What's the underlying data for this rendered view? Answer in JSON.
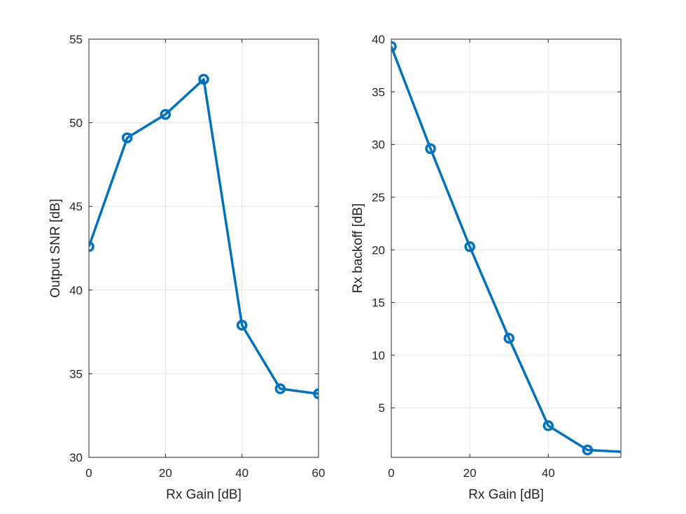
{
  "chart_data": [
    {
      "type": "line",
      "title": "",
      "xlabel": "Rx Gain [dB]",
      "ylabel": "Output SNR [dB]",
      "xlim": [
        0,
        60
      ],
      "ylim": [
        30,
        55
      ],
      "xticks": [
        0,
        20,
        40,
        60
      ],
      "yticks": [
        30,
        35,
        40,
        45,
        50,
        55
      ],
      "grid": true,
      "marker": "circle",
      "line_color": "#0072BD",
      "series": [
        {
          "x": [
            0,
            10,
            20,
            30,
            40,
            50,
            60
          ],
          "y": [
            42.6,
            49.1,
            50.5,
            52.6,
            37.9,
            34.1,
            33.8
          ]
        }
      ]
    },
    {
      "type": "line",
      "title": "",
      "xlabel": "Rx Gain [dB]",
      "ylabel": "Rx backoff [dB]",
      "xlim": [
        0,
        58.5
      ],
      "ylim": [
        0.3,
        40
      ],
      "xticks": [
        0,
        20,
        40
      ],
      "yticks": [
        5,
        10,
        15,
        20,
        25,
        30,
        35,
        40
      ],
      "grid": true,
      "marker": "circle",
      "line_color": "#0072BD",
      "series": [
        {
          "x": [
            0,
            10,
            20,
            30,
            40,
            50,
            60
          ],
          "y": [
            39.3,
            29.6,
            20.3,
            11.6,
            3.3,
            1.0,
            0.8
          ]
        }
      ]
    }
  ]
}
